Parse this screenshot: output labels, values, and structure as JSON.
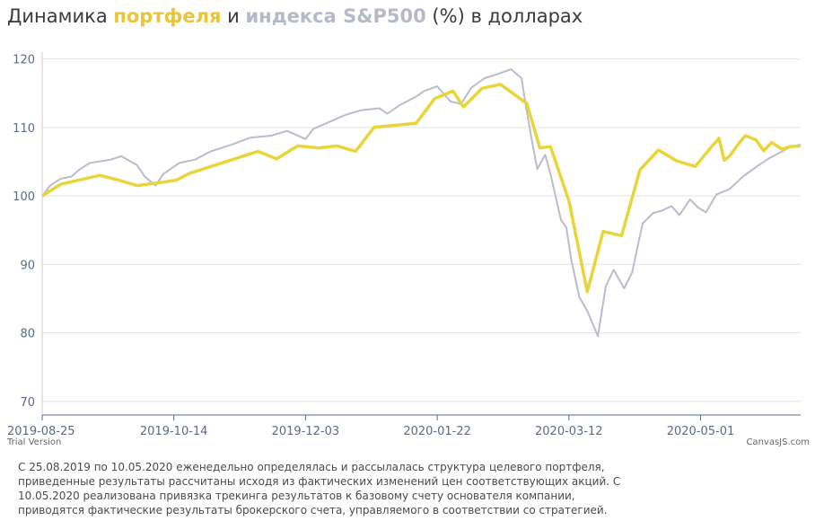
{
  "title": {
    "prefix": "Динамика ",
    "portfolio_word": "портфеля",
    "middle": " и ",
    "index_word": "индекса S&P500",
    "suffix": " (%) в долларах"
  },
  "trial_label": "Trial Version",
  "credit_label": "CanvasJS.com",
  "footnote": "С 25.08.2019 по 10.05.2020 еженедельно определялась и рассылалась структура целевого портфеля, приведенные результаты рассчитаны исходя из фактических изменений цен соответствующих акций. С 10.05.2020 реализована привязка трекинга результатов к базовому счету основателя компании, приводятся фактические результаты брокерского счета, управляемого в соответствии со стратегией.",
  "colors": {
    "portfolio": "#e8d53a",
    "index": "#b9bccd",
    "grid": "#e4e4e4",
    "axis": "#5a6b85"
  },
  "chart_data": {
    "type": "line",
    "x_ticks": [
      "2019-08-25",
      "2019-10-14",
      "2019-12-03",
      "2020-01-22",
      "2020-03-12",
      "2020-05-01"
    ],
    "y_ticks": [
      70,
      80,
      90,
      100,
      110,
      120
    ],
    "ylim": [
      68,
      121
    ],
    "xlim": [
      "2019-08-25",
      "2020-06-08"
    ],
    "grid": true,
    "series": [
      {
        "name": "портфеля",
        "points": [
          [
            "2019-08-25",
            100
          ],
          [
            "2019-09-01",
            101.7
          ],
          [
            "2019-09-16",
            103
          ],
          [
            "2019-09-23",
            102.3
          ],
          [
            "2019-09-30",
            101.5
          ],
          [
            "2019-10-10",
            102
          ],
          [
            "2019-10-15",
            102.3
          ],
          [
            "2019-10-20",
            103.3
          ],
          [
            "2019-11-15",
            106.5
          ],
          [
            "2019-11-22",
            105.4
          ],
          [
            "2019-11-30",
            107.3
          ],
          [
            "2019-12-08",
            107
          ],
          [
            "2019-12-15",
            107.3
          ],
          [
            "2019-12-22",
            106.5
          ],
          [
            "2019-12-29",
            110
          ],
          [
            "2020-01-14",
            110.6
          ],
          [
            "2020-01-21",
            114.2
          ],
          [
            "2020-01-28",
            115.3
          ],
          [
            "2020-02-01",
            113
          ],
          [
            "2020-02-08",
            115.7
          ],
          [
            "2020-02-15",
            116.3
          ],
          [
            "2020-02-25",
            113.5
          ],
          [
            "2020-03-01",
            107
          ],
          [
            "2020-03-05",
            107.2
          ],
          [
            "2020-03-12",
            99.3
          ],
          [
            "2020-03-19",
            86
          ],
          [
            "2020-03-25",
            94.8
          ],
          [
            "2020-04-01",
            94.2
          ],
          [
            "2020-04-08",
            103.8
          ],
          [
            "2020-04-15",
            106.7
          ],
          [
            "2020-04-22",
            105.1
          ],
          [
            "2020-04-29",
            104.3
          ],
          [
            "2020-05-05",
            107.1
          ],
          [
            "2020-05-08",
            108.4
          ],
          [
            "2020-05-10",
            105.2
          ],
          [
            "2020-05-12",
            105.8
          ],
          [
            "2020-05-15",
            107.4
          ],
          [
            "2020-05-18",
            108.8
          ],
          [
            "2020-05-22",
            108.2
          ],
          [
            "2020-05-25",
            106.6
          ],
          [
            "2020-05-28",
            107.8
          ],
          [
            "2020-06-01",
            106.8
          ],
          [
            "2020-06-04",
            107.2
          ],
          [
            "2020-06-08",
            107.3
          ]
        ]
      },
      {
        "name": "индекса S&P500",
        "points": [
          [
            "2019-08-25",
            100
          ],
          [
            "2019-08-28",
            101.5
          ],
          [
            "2019-09-01",
            102.5
          ],
          [
            "2019-09-05",
            102.8
          ],
          [
            "2019-09-08",
            103.8
          ],
          [
            "2019-09-12",
            104.8
          ],
          [
            "2019-09-20",
            105.3
          ],
          [
            "2019-09-24",
            105.8
          ],
          [
            "2019-09-30",
            104.5
          ],
          [
            "2019-10-03",
            102.8
          ],
          [
            "2019-10-07",
            101.5
          ],
          [
            "2019-10-10",
            103.2
          ],
          [
            "2019-10-16",
            104.8
          ],
          [
            "2019-10-22",
            105.3
          ],
          [
            "2019-10-28",
            106.5
          ],
          [
            "2019-11-05",
            107.5
          ],
          [
            "2019-11-12",
            108.5
          ],
          [
            "2019-11-20",
            108.8
          ],
          [
            "2019-11-26",
            109.5
          ],
          [
            "2019-12-03",
            108.3
          ],
          [
            "2019-12-06",
            109.8
          ],
          [
            "2019-12-12",
            110.8
          ],
          [
            "2019-12-18",
            111.8
          ],
          [
            "2019-12-24",
            112.5
          ],
          [
            "2019-12-31",
            112.8
          ],
          [
            "2020-01-03",
            112.0
          ],
          [
            "2020-01-08",
            113.3
          ],
          [
            "2020-01-14",
            114.5
          ],
          [
            "2020-01-17",
            115.3
          ],
          [
            "2020-01-22",
            116.0
          ],
          [
            "2020-01-27",
            113.8
          ],
          [
            "2020-01-31",
            113.4
          ],
          [
            "2020-02-04",
            115.8
          ],
          [
            "2020-02-09",
            117.2
          ],
          [
            "2020-02-14",
            117.8
          ],
          [
            "2020-02-19",
            118.5
          ],
          [
            "2020-02-23",
            117.2
          ],
          [
            "2020-02-25",
            112.3
          ],
          [
            "2020-02-27",
            108.0
          ],
          [
            "2020-02-29",
            103.9
          ],
          [
            "2020-03-03",
            106.0
          ],
          [
            "2020-03-05",
            103.2
          ],
          [
            "2020-03-09",
            96.5
          ],
          [
            "2020-03-11",
            95.4
          ],
          [
            "2020-03-13",
            90.5
          ],
          [
            "2020-03-16",
            85.2
          ],
          [
            "2020-03-19",
            83.2
          ],
          [
            "2020-03-23",
            79.5
          ],
          [
            "2020-03-26",
            86.8
          ],
          [
            "2020-03-29",
            89.2
          ],
          [
            "2020-04-02",
            86.5
          ],
          [
            "2020-04-05",
            88.8
          ],
          [
            "2020-04-09",
            96.0
          ],
          [
            "2020-04-13",
            97.5
          ],
          [
            "2020-04-16",
            97.8
          ],
          [
            "2020-04-20",
            98.5
          ],
          [
            "2020-04-23",
            97.2
          ],
          [
            "2020-04-27",
            99.5
          ],
          [
            "2020-04-30",
            98.3
          ],
          [
            "2020-05-03",
            97.6
          ],
          [
            "2020-05-07",
            100.2
          ],
          [
            "2020-05-12",
            101.0
          ],
          [
            "2020-05-17",
            102.8
          ],
          [
            "2020-05-22",
            104.2
          ],
          [
            "2020-05-27",
            105.5
          ],
          [
            "2020-06-01",
            106.5
          ],
          [
            "2020-06-04",
            107.2
          ],
          [
            "2020-06-08",
            107.5
          ]
        ]
      }
    ]
  }
}
